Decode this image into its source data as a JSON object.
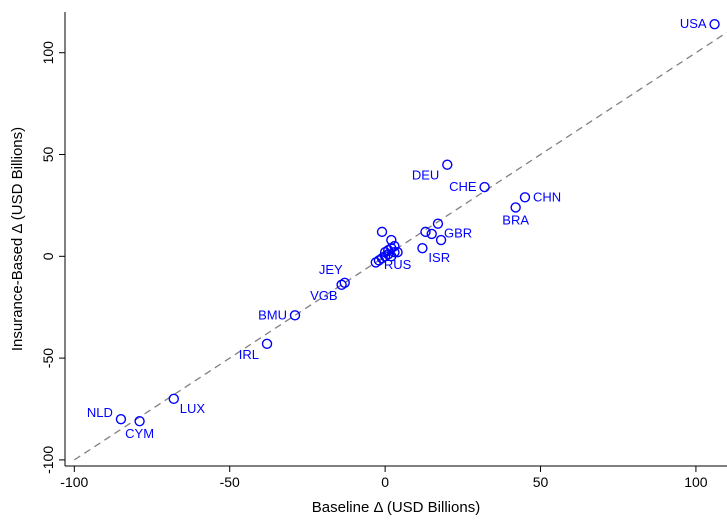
{
  "chart_data": {
    "type": "scatter",
    "xlabel": "Baseline Δ (USD Billions)",
    "ylabel": "Insurance-Based Δ (USD Billions)",
    "xlim": [
      -103,
      110
    ],
    "ylim": [
      -103,
      120
    ],
    "xticks": [
      -100,
      -50,
      0,
      50,
      100
    ],
    "yticks": [
      -100,
      -50,
      0,
      50,
      100
    ],
    "grid": false,
    "marker_color": "#0000ff",
    "label_color": "#0000ff",
    "reference_line": {
      "style": "dashed",
      "color": "#808080",
      "x": [
        -100,
        110
      ],
      "y": [
        -100,
        110
      ]
    },
    "points": [
      {
        "label": "USA",
        "x": 106,
        "y": 114,
        "pos": "left"
      },
      {
        "label": "DEU",
        "x": 20,
        "y": 45,
        "pos": "belowleft"
      },
      {
        "label": "CHE",
        "x": 32,
        "y": 34,
        "pos": "left"
      },
      {
        "label": "CHN",
        "x": 45,
        "y": 29,
        "pos": "right"
      },
      {
        "label": "BRA",
        "x": 42,
        "y": 24,
        "pos": "below"
      },
      {
        "label": "GBR",
        "x": 17,
        "y": 16,
        "pos": "belowright"
      },
      {
        "label": "",
        "x": 13,
        "y": 12
      },
      {
        "label": "",
        "x": 15,
        "y": 11
      },
      {
        "label": "",
        "x": 18,
        "y": 8
      },
      {
        "label": "ISR",
        "x": 12,
        "y": 4,
        "pos": "belowright"
      },
      {
        "label": "RUS",
        "x": 4,
        "y": 2,
        "pos": "below"
      },
      {
        "label": "",
        "x": -1,
        "y": 12
      },
      {
        "label": "",
        "x": 2,
        "y": 8
      },
      {
        "label": "",
        "x": 3,
        "y": 5
      },
      {
        "label": "",
        "x": 2,
        "y": 4
      },
      {
        "label": "",
        "x": 1,
        "y": 3
      },
      {
        "label": "",
        "x": 0,
        "y": 2
      },
      {
        "label": "",
        "x": 3,
        "y": 2
      },
      {
        "label": "",
        "x": 1,
        "y": 1
      },
      {
        "label": "",
        "x": 0,
        "y": 0
      },
      {
        "label": "",
        "x": -1,
        "y": -1
      },
      {
        "label": "",
        "x": 2,
        "y": 0
      },
      {
        "label": "",
        "x": -2,
        "y": -2
      },
      {
        "label": "",
        "x": -3,
        "y": -3
      },
      {
        "label": "JEY",
        "x": -13,
        "y": -13,
        "pos": "aboveleft"
      },
      {
        "label": "VGB",
        "x": -14,
        "y": -14,
        "pos": "belowleftclose"
      },
      {
        "label": "BMU",
        "x": -29,
        "y": -29,
        "pos": "left"
      },
      {
        "label": "IRL",
        "x": -38,
        "y": -43,
        "pos": "belowleft"
      },
      {
        "label": "LUX",
        "x": -68,
        "y": -70,
        "pos": "belowright"
      },
      {
        "label": "NLD",
        "x": -85,
        "y": -80,
        "pos": "leftabove"
      },
      {
        "label": "CYM",
        "x": -79,
        "y": -81,
        "pos": "below"
      }
    ]
  }
}
